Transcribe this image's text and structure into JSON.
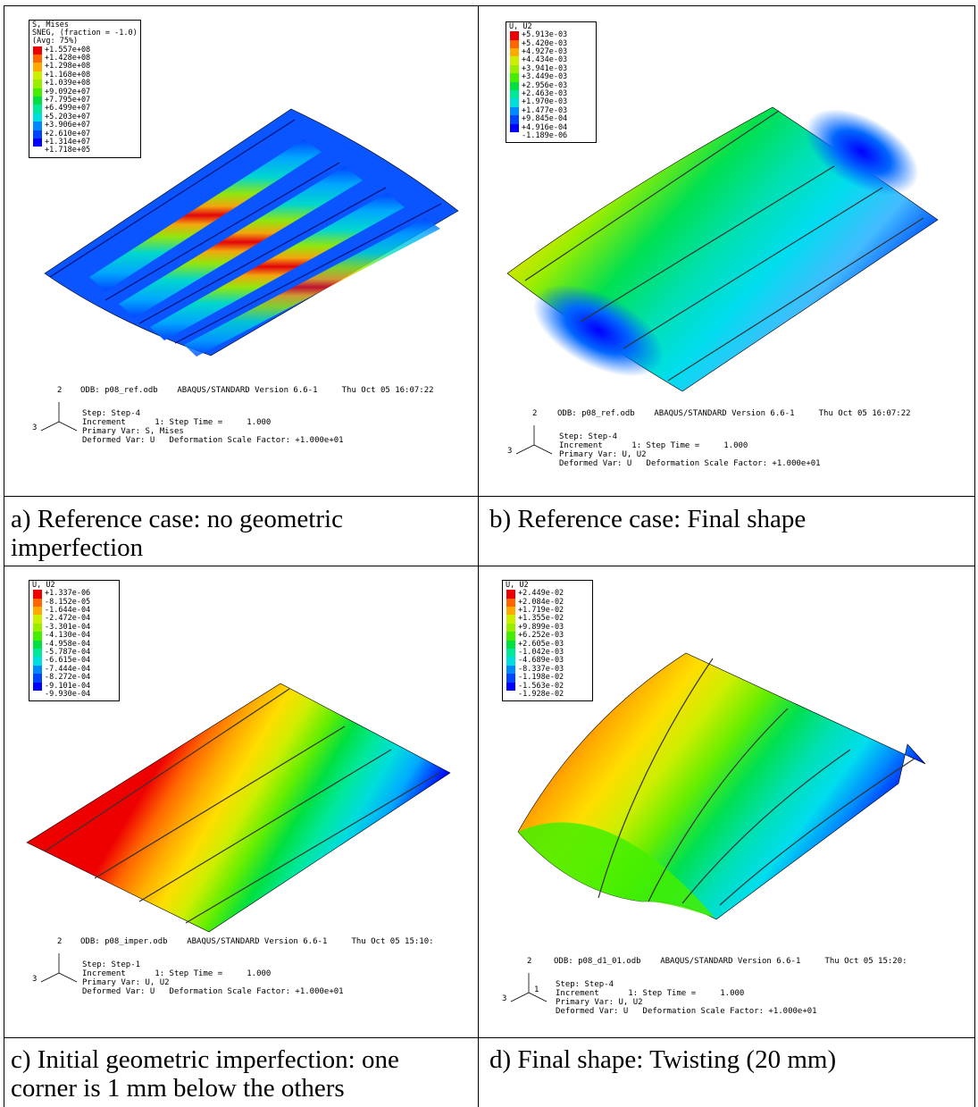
{
  "palette": [
    "#0000ff",
    "#0044ff",
    "#0088ff",
    "#00bbff",
    "#00dddd",
    "#00e89a",
    "#00e040",
    "#44ee00",
    "#99ee00",
    "#ccee00",
    "#ffdd00",
    "#ffaa00",
    "#ff6600",
    "#ee0000"
  ],
  "panels": [
    {
      "id": "a",
      "caption": "a) Reference case: no geometric imperfection",
      "legend_title": [
        "S, Mises",
        "SNEG, (fraction = -1.0)",
        "(Avg: 75%)"
      ],
      "legend_values": [
        "+1.557e+08",
        "+1.428e+08",
        "+1.298e+08",
        "+1.168e+08",
        "+1.039e+08",
        "+9.092e+07",
        "+7.795e+07",
        "+6.499e+07",
        "+5.203e+07",
        "+3.906e+07",
        "+2.610e+07",
        "+1.314e+07",
        "+1.718e+05"
      ],
      "odb": "ODB: p08_ref.odb",
      "version": "ABAQUS/STANDARD Version 6.6-1",
      "date": "Thu Oct 05 16:07:22",
      "step": "Step: Step-4",
      "increment": "Increment      1: Step Time =     1.000",
      "primary": "Primary Var: S, Mises",
      "deformed": "Deformed Var: U   Deformation Scale Factor: +1.000e+01",
      "axis_labels": [
        "2",
        "3"
      ]
    },
    {
      "id": "b",
      "caption": "b) Reference case: Final shape",
      "legend_title": [
        "U, U2"
      ],
      "legend_values": [
        "+5.913e-03",
        "+5.420e-03",
        "+4.927e-03",
        "+4.434e-03",
        "+3.941e-03",
        "+3.449e-03",
        "+2.956e-03",
        "+2.463e-03",
        "+1.970e-03",
        "+1.477e-03",
        "+9.845e-04",
        "+4.916e-04",
        "-1.189e-06"
      ],
      "odb": "ODB: p08_ref.odb",
      "version": "ABAQUS/STANDARD Version 6.6-1",
      "date": "Thu Oct 05 16:07:22",
      "step": "Step: Step-4",
      "increment": "Increment      1: Step Time =     1.000",
      "primary": "Primary Var: U, U2",
      "deformed": "Deformed Var: U   Deformation Scale Factor: +1.000e+01",
      "axis_labels": [
        "2",
        "3"
      ]
    },
    {
      "id": "c",
      "caption": "c) Initial geometric imperfection: one corner is 1 mm below the others",
      "legend_title": [
        "U, U2"
      ],
      "legend_values": [
        "+1.337e-06",
        "-8.152e-05",
        "-1.644e-04",
        "-2.472e-04",
        "-3.301e-04",
        "-4.130e-04",
        "-4.958e-04",
        "-5.787e-04",
        "-6.615e-04",
        "-7.444e-04",
        "-8.272e-04",
        "-9.101e-04",
        "-9.930e-04"
      ],
      "odb": "ODB: p08_imper.odb",
      "version": "ABAQUS/STANDARD Version 6.6-1",
      "date": "Thu Oct 05 15:10:",
      "step": "Step: Step-1",
      "increment": "Increment      1: Step Time =     1.000",
      "primary": "Primary Var: U, U2",
      "deformed": "Deformed Var: U   Deformation Scale Factor: +1.000e+01",
      "axis_labels": [
        "2",
        "3"
      ]
    },
    {
      "id": "d",
      "caption": "d) Final shape: Twisting (20 mm)",
      "legend_title": [
        "U, U2"
      ],
      "legend_values": [
        "+2.449e-02",
        "+2.084e-02",
        "+1.719e-02",
        "+1.355e-02",
        "+9.899e-03",
        "+6.252e-03",
        "+2.605e-03",
        "-1.042e-03",
        "-4.689e-03",
        "-8.337e-03",
        "-1.198e-02",
        "-1.563e-02",
        "-1.928e-02"
      ],
      "odb": "ODB: p08_d1_01.odb",
      "version": "ABAQUS/STANDARD Version 6.6-1",
      "date": "Thu Oct 05 15:20:",
      "step": "Step: Step-4",
      "increment": "Increment      1: Step Time =     1.000",
      "primary": "Primary Var: U, U2",
      "deformed": "Deformed Var: U   Deformation Scale Factor: +1.000e+01",
      "axis_labels": [
        "2",
        "3",
        "1"
      ]
    }
  ]
}
